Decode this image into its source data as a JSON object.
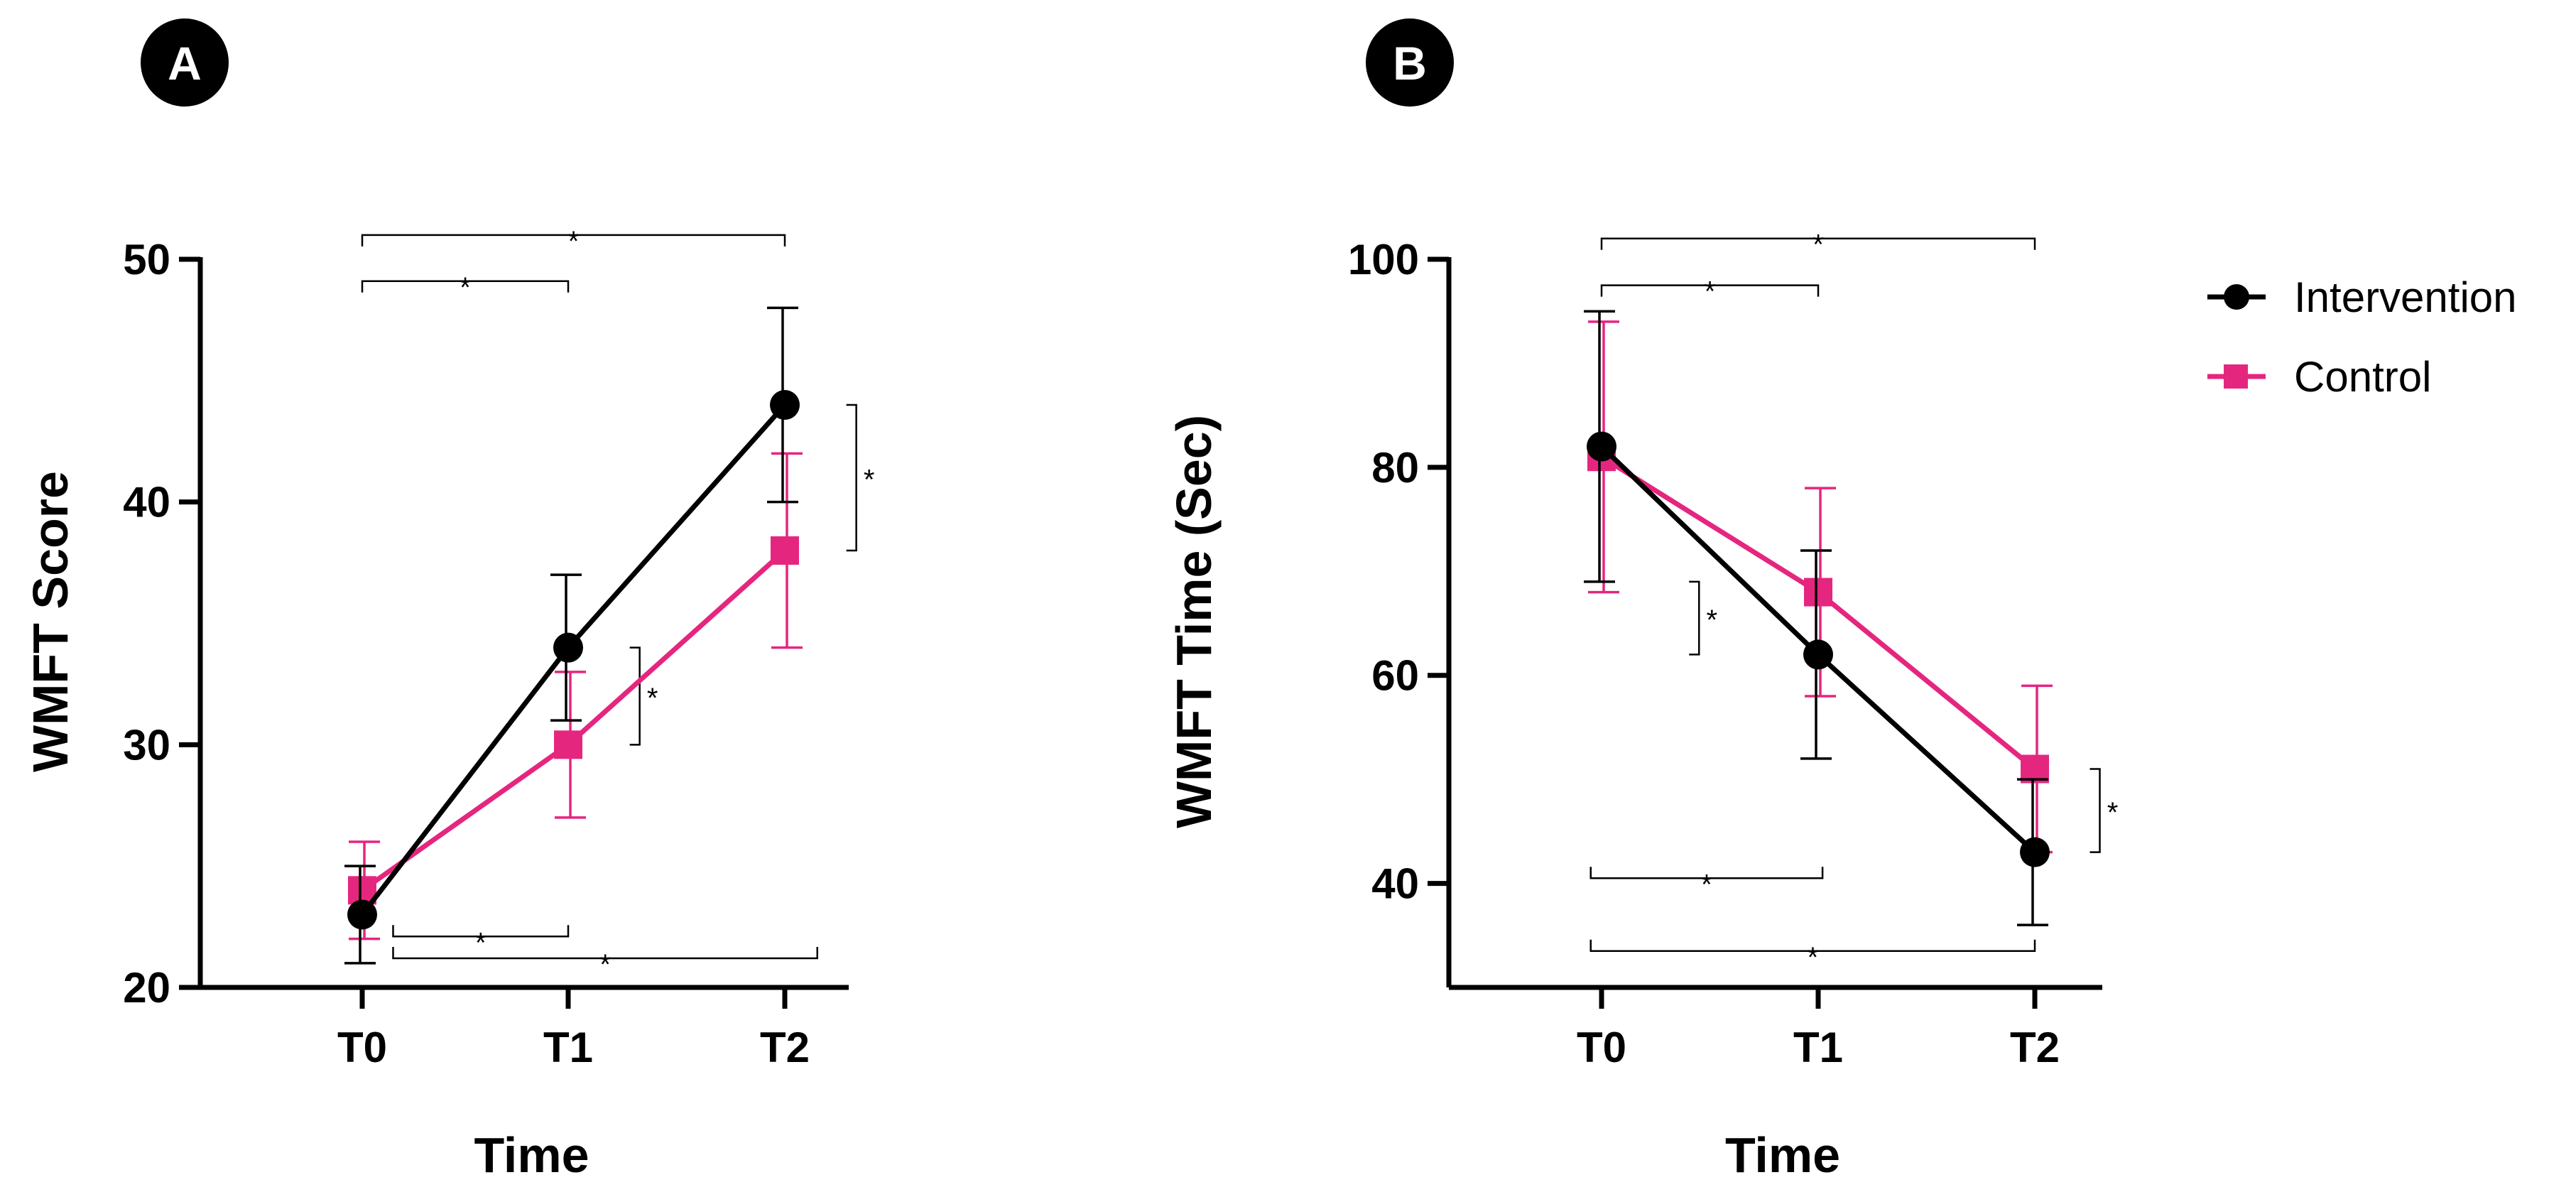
{
  "colors": {
    "intervention": "#000000",
    "control": "#e5267f",
    "badge": "#000000"
  },
  "legend": [
    {
      "name": "Intervention",
      "color": "#000000",
      "marker": "circle"
    },
    {
      "name": "Control",
      "color": "#e5267f",
      "marker": "square"
    }
  ],
  "significance_marker": "*",
  "chart_data": [
    {
      "panel": "A",
      "type": "line",
      "xlabel": "Time",
      "ylabel": "WMFT Score",
      "categories": [
        "T0",
        "T1",
        "T2"
      ],
      "ylim": [
        20,
        50
      ],
      "yticks": [
        20,
        30,
        40,
        50
      ],
      "series": [
        {
          "name": "Intervention",
          "values": [
            23,
            34,
            44
          ],
          "err_low": [
            21,
            31,
            40
          ],
          "err_high": [
            25,
            37,
            48
          ]
        },
        {
          "name": "Control",
          "values": [
            24,
            30,
            38
          ],
          "err_low": [
            22,
            27,
            34
          ],
          "err_high": [
            26,
            33,
            42
          ]
        }
      ],
      "significance": [
        {
          "kind": "h",
          "from": 0,
          "to": 2,
          "y": 51,
          "label": "*"
        },
        {
          "kind": "h",
          "from": 0,
          "to": 1,
          "y": 49.1,
          "label": "*"
        },
        {
          "kind": "h",
          "from": 0.15,
          "to": 1,
          "y": 22.1,
          "label": "*"
        },
        {
          "kind": "h",
          "from": 0.15,
          "to": 2.15,
          "y": 21.2,
          "label": "*"
        },
        {
          "kind": "v",
          "x": 1.33,
          "from": 30,
          "to": 34,
          "label": "*"
        },
        {
          "kind": "v",
          "x": 2.33,
          "from": 38,
          "to": 44,
          "label": "*"
        }
      ]
    },
    {
      "panel": "B",
      "type": "line",
      "xlabel": "Time",
      "ylabel": "WMFT Time (Sec)",
      "categories": [
        "T0",
        "T1",
        "T2"
      ],
      "ylim": [
        30,
        100
      ],
      "yticks": [
        40,
        60,
        80,
        100
      ],
      "series": [
        {
          "name": "Intervention",
          "values": [
            82,
            62,
            43
          ],
          "err_low": [
            69,
            52,
            36
          ],
          "err_high": [
            95,
            72,
            50
          ]
        },
        {
          "name": "Control",
          "values": [
            81,
            68,
            51
          ],
          "err_low": [
            68,
            58,
            43
          ],
          "err_high": [
            94,
            78,
            59
          ]
        }
      ],
      "significance": [
        {
          "kind": "h",
          "from": 0,
          "to": 2,
          "y": 102,
          "label": "*"
        },
        {
          "kind": "h",
          "from": 0,
          "to": 1,
          "y": 97.5,
          "label": "*"
        },
        {
          "kind": "h",
          "from": -0.05,
          "to": 1.02,
          "y": 40.5,
          "label": "*"
        },
        {
          "kind": "h",
          "from": -0.05,
          "to": 2,
          "y": 33.5,
          "label": "*"
        },
        {
          "kind": "v",
          "x": 0.45,
          "from": 62,
          "to": 69,
          "label": "*"
        },
        {
          "kind": "v",
          "x": 2.3,
          "from": 43,
          "to": 51,
          "label": "*"
        }
      ]
    }
  ]
}
